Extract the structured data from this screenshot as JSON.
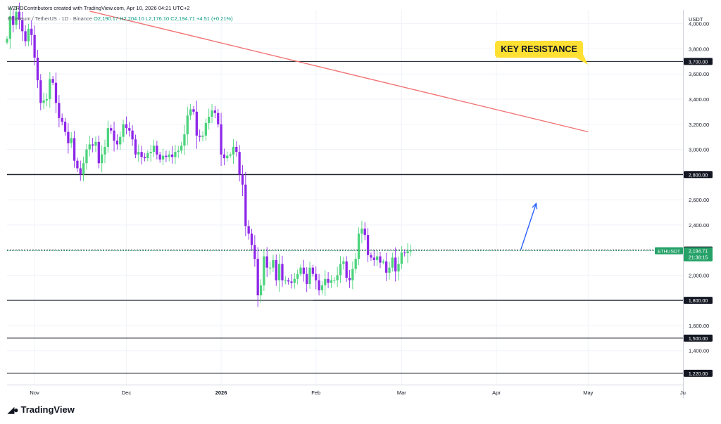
{
  "header": {
    "credit": "WZRDContributors created with TradingView.com, Apr 10, 2026 04:21 UTC+2",
    "symbol": "Ethereum / TetherUS · 1D · Binance",
    "ohlc": "O2,190.17  H2,204.10  L2,176.10  C2,194.71  +4.51 (+0.21%)"
  },
  "branding": {
    "logo_text": "TradingView"
  },
  "chart_data": {
    "type": "candlestick",
    "title": "Ethereum / TetherUS · 1D · Binance",
    "currency": "USDT",
    "ylim": [
      1130,
      4110
    ],
    "y_ticks": [
      1400,
      1600,
      1800,
      2000,
      2200,
      2400,
      2600,
      2800,
      3000,
      3200,
      3400,
      3600,
      3800,
      4000
    ],
    "y_tick_labels": [
      "1,400.00",
      "1,600.00",
      "1,800.00",
      "2,000.00",
      "2,200.00",
      "2,400.00",
      "2,600.00",
      "2,800.00",
      "3,000.00",
      "3,200.00",
      "3,400.00",
      "3,600.00",
      "3,800.00",
      "4,000.00"
    ],
    "x_ticks": [
      "Nov",
      "Dec",
      "2026",
      "Feb",
      "Mar",
      "Apr",
      "May",
      "Ju"
    ],
    "x_tick_dates": [
      "2025-11-01",
      "2025-12-01",
      "2026-01-01",
      "2026-02-01",
      "2026-03-01",
      "2026-04-01",
      "2026-05-01",
      "2026-06-01"
    ],
    "x_range": [
      "2025-10-23",
      "2026-06-01"
    ],
    "grid": true,
    "colors": {
      "up": "#4cd37c",
      "down": "#8e27e8",
      "trendline": "#f27474",
      "arrow": "#2962ff",
      "price_label": "#26a269",
      "annotation_bg": "#ffe033"
    },
    "levels": [
      {
        "price": 3700,
        "label": "3,700.00"
      },
      {
        "price": 2800,
        "label": "2,800.00"
      },
      {
        "price": 2200,
        "label": "2,200.00"
      },
      {
        "price": 1800,
        "label": "1,800.00"
      },
      {
        "price": 1500,
        "label": "1,500.00"
      },
      {
        "price": 1220,
        "label": "1,220.00"
      }
    ],
    "current_price": {
      "symbol": "ETHUSDT",
      "value": "2,194.71",
      "countdown": "21:38:15",
      "price": 2194.71
    },
    "annotation": "KEY RESISTANCE",
    "trendline": {
      "from": {
        "date": "2025-11-19",
        "price": 4100
      },
      "to": {
        "date": "2026-05-01",
        "price": 3140
      }
    },
    "arrow": {
      "from": {
        "date": "2026-04-09",
        "price": 2205
      },
      "to": {
        "date": "2026-04-14",
        "price": 2570
      }
    },
    "closes": [
      3880,
      4060,
      3990,
      4095,
      4030,
      3940,
      3860,
      3960,
      3910,
      3730,
      3550,
      3370,
      3390,
      3400,
      3560,
      3530,
      3370,
      3250,
      3220,
      3140,
      3050,
      3090,
      2910,
      2850,
      2800,
      2890,
      3000,
      3040,
      3030,
      3060,
      2890,
      2960,
      3020,
      3170,
      3150,
      3070,
      3040,
      3100,
      3200,
      3170,
      3150,
      3080,
      2960,
      2980,
      2940,
      2930,
      2970,
      2980,
      3030,
      2960,
      2920,
      2950,
      2940,
      2960,
      2940,
      2980,
      2990,
      3030,
      3120,
      3270,
      3320,
      3300,
      3110,
      3100,
      3110,
      3210,
      3260,
      3310,
      3290,
      3200,
      2960,
      2930,
      2950,
      2960,
      3020,
      2980,
      2800,
      2720,
      2390,
      2330,
      2240,
      2130,
      1840,
      1920,
      2150,
      2060,
      2060,
      2120,
      1960,
      2090,
      1960,
      1960,
      1950,
      1940,
      1970,
      2010,
      2060,
      2010,
      1930,
      2060,
      2010,
      1960,
      1880,
      1920,
      1970,
      1940,
      1960,
      1960,
      2000,
      2090,
      2110,
      1980,
      1960,
      2050,
      2130,
      2330,
      2370,
      2320,
      2160,
      2140,
      2120,
      2150,
      2100,
      2110,
      2020,
      2060,
      2140,
      2030,
      2090,
      2180,
      2175,
      2190,
      2194.71
    ]
  }
}
